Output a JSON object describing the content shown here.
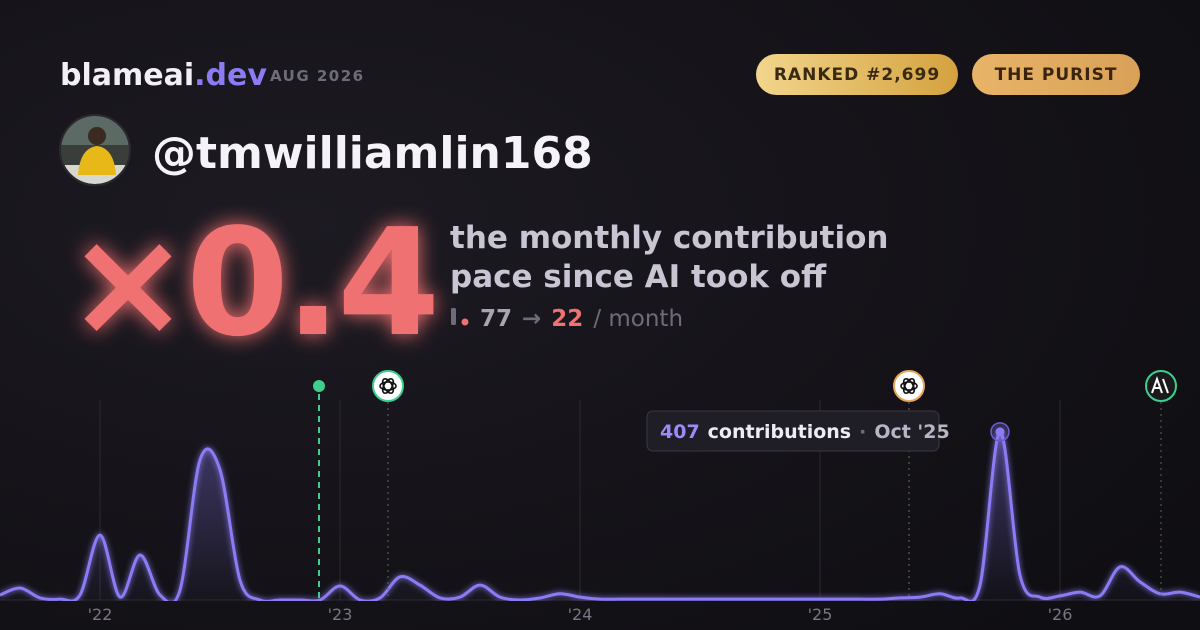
{
  "header": {
    "brand": "blameai",
    "brand_suffix": ".dev",
    "date": "AUG 2026",
    "badges": [
      "RANKED #2,699",
      "THE PURIST"
    ]
  },
  "user": {
    "handle": "@tmwilliamlin168"
  },
  "headline": {
    "multiplier": "×0.4",
    "description": [
      "the monthly contribution",
      "pace since AI took off"
    ],
    "pace": {
      "before": 77,
      "arrow": "→",
      "after": 22,
      "unit": "/ month"
    }
  },
  "chart_data": {
    "type": "line",
    "color": "#8b7cf6",
    "grid": true,
    "categories": [
      null,
      null,
      null,
      null,
      null,
      "'22",
      null,
      null,
      null,
      null,
      null,
      null,
      null,
      null,
      null,
      null,
      null,
      "'23",
      null,
      null,
      null,
      null,
      null,
      null,
      null,
      null,
      null,
      null,
      null,
      "'24",
      null,
      null,
      null,
      null,
      null,
      null,
      null,
      null,
      null,
      null,
      null,
      "'25",
      null,
      null,
      null,
      null,
      null,
      null,
      null,
      null,
      null,
      null,
      null,
      "'26",
      null,
      null,
      null,
      null,
      null,
      null,
      null
    ],
    "values": [
      12,
      29,
      5,
      2,
      12,
      157,
      7,
      109,
      12,
      24,
      339,
      315,
      48,
      0,
      0,
      0,
      0,
      34,
      0,
      5,
      56,
      36,
      5,
      7,
      36,
      7,
      0,
      5,
      15,
      7,
      2,
      2,
      2,
      2,
      2,
      2,
      2,
      2,
      2,
      2,
      2,
      2,
      2,
      2,
      2,
      5,
      7,
      15,
      5,
      36,
      407,
      60,
      7,
      10,
      19,
      10,
      80,
      44,
      15,
      19,
      7
    ],
    "ylim": [
      0,
      484
    ],
    "tooltip": {
      "label": "contributions",
      "separator": "·",
      "date": "Oct '25"
    }
  }
}
